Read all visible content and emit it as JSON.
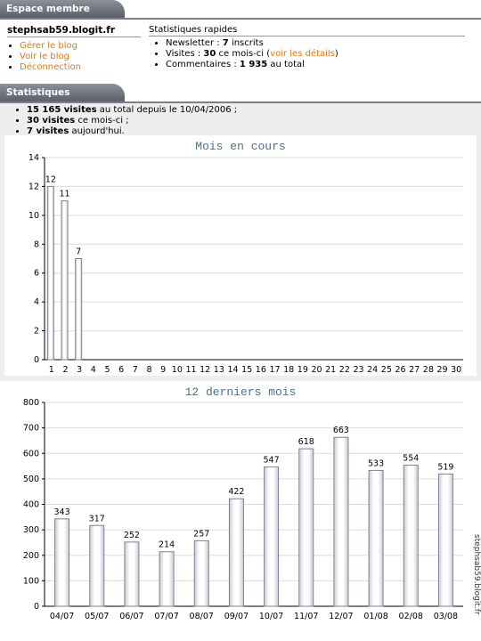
{
  "member": {
    "title": "Espace membre",
    "blog": "stephsab59.blogit.fr",
    "links": [
      "Gérer le blog",
      "Voir le blog",
      "Déconnection"
    ],
    "quick_title": "Statistiques rapides",
    "quick": [
      [
        {
          "text": "Newsletter : ",
          "style": "plain"
        },
        {
          "text": "7",
          "style": "bold"
        },
        {
          "text": " inscrits",
          "style": "plain"
        }
      ],
      [
        {
          "text": "Visites : ",
          "style": "plain"
        },
        {
          "text": "30",
          "style": "bold"
        },
        {
          "text": " ce mois-ci (",
          "style": "plain"
        },
        {
          "text": "voir les détails",
          "style": "link"
        },
        {
          "text": ")",
          "style": "plain"
        }
      ],
      [
        {
          "text": "Commentaires : ",
          "style": "plain"
        },
        {
          "text": "1 935",
          "style": "bold"
        },
        {
          "text": " au total",
          "style": "plain"
        }
      ]
    ]
  },
  "stats": {
    "title": "Statistiques",
    "items": [
      [
        {
          "text": "15 165 visites",
          "style": "bold"
        },
        {
          "text": " au total depuis le 10/04/2006 ;",
          "style": "plain"
        }
      ],
      [
        {
          "text": "30 visites",
          "style": "bold"
        },
        {
          "text": " ce mois-ci ;",
          "style": "plain"
        }
      ],
      [
        {
          "text": "7 visites",
          "style": "bold"
        },
        {
          "text": " aujourd'hui.",
          "style": "plain"
        }
      ]
    ]
  },
  "side_text": "stephsab59.blogit.fr",
  "chart_data": [
    {
      "type": "bar",
      "title": "Mois en cours",
      "categories": [
        "1",
        "2",
        "3",
        "4",
        "5",
        "6",
        "7",
        "8",
        "9",
        "10",
        "11",
        "12",
        "13",
        "14",
        "15",
        "16",
        "17",
        "18",
        "19",
        "20",
        "21",
        "22",
        "23",
        "24",
        "25",
        "26",
        "27",
        "28",
        "29",
        "30"
      ],
      "values": [
        12,
        11,
        7,
        null,
        null,
        null,
        null,
        null,
        null,
        null,
        null,
        null,
        null,
        null,
        null,
        null,
        null,
        null,
        null,
        null,
        null,
        null,
        null,
        null,
        null,
        null,
        null,
        null,
        null,
        null
      ],
      "ylim": [
        0,
        14
      ],
      "yticks": [
        0,
        2,
        4,
        6,
        8,
        10,
        12,
        14
      ],
      "grid": true,
      "color": "#ffffff"
    },
    {
      "type": "bar",
      "title": "12 derniers mois",
      "categories": [
        "04/07",
        "05/07",
        "06/07",
        "07/07",
        "08/07",
        "09/07",
        "10/07",
        "11/07",
        "12/07",
        "01/08",
        "02/08",
        "03/08"
      ],
      "values": [
        343,
        317,
        252,
        214,
        257,
        422,
        547,
        618,
        663,
        533,
        554,
        519
      ],
      "ylim": [
        0,
        800
      ],
      "yticks": [
        0,
        100,
        200,
        300,
        400,
        500,
        600,
        700,
        800
      ],
      "grid": true,
      "color": "#ffffff"
    }
  ]
}
